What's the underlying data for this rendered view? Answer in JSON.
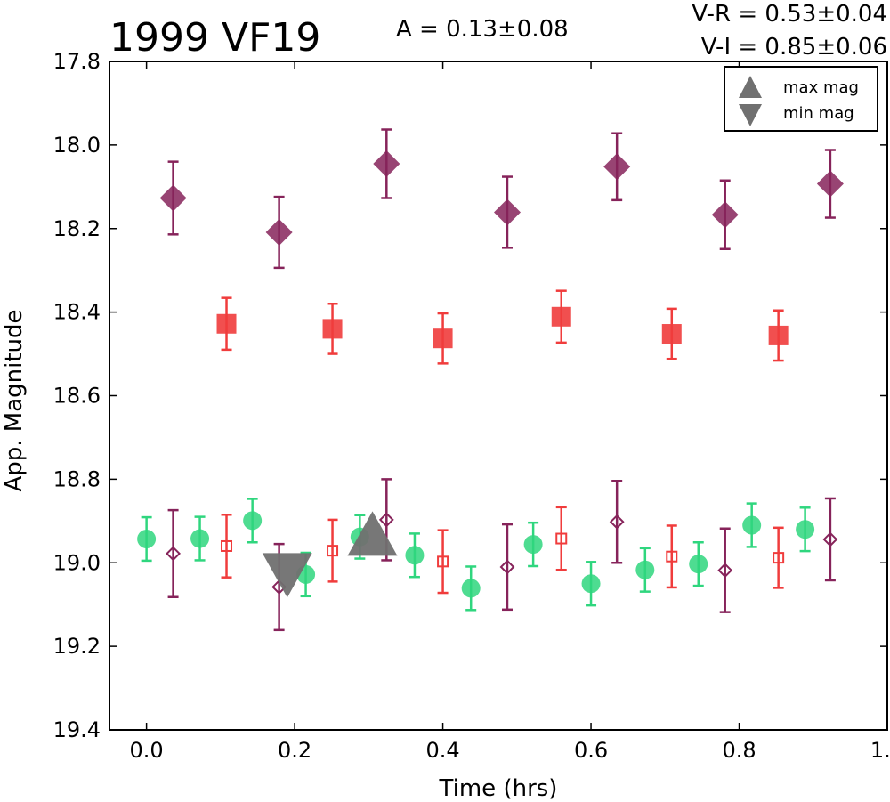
{
  "chart_data": {
    "type": "scatter",
    "title": "1999 VF19",
    "xlabel": "Time (hrs)",
    "ylabel": "App. Magnitude",
    "xlim": [
      -0.05,
      1.0
    ],
    "ylim": [
      19.4,
      17.8
    ],
    "y_inverted": true,
    "xticks": [
      "0.0",
      "0.2",
      "0.4",
      "0.6",
      "0.8",
      "1.0"
    ],
    "yticks": [
      "17.8",
      "18.0",
      "18.2",
      "18.4",
      "18.6",
      "18.8",
      "19.0",
      "19.2",
      "19.4"
    ],
    "grid": false,
    "annotations": {
      "amplitude": "A  = 0.13±0.08",
      "v_r": "V-R = 0.53±0.04",
      "v_i": "V-I  = 0.85±0.06"
    },
    "legend": {
      "placement": "top-right",
      "entries": [
        {
          "label": "max mag",
          "marker": "triangle-up",
          "color": "#707070"
        },
        {
          "label": "min mag",
          "marker": "triangle-down",
          "color": "#707070"
        }
      ]
    },
    "series": [
      {
        "marker": "diamond-filled",
        "color": "#86235a",
        "points": [
          {
            "x": 0.036,
            "y": 18.127,
            "err": 0.087
          },
          {
            "x": 0.179,
            "y": 18.209,
            "err": 0.085
          },
          {
            "x": 0.324,
            "y": 18.045,
            "err": 0.082
          },
          {
            "x": 0.487,
            "y": 18.161,
            "err": 0.085
          },
          {
            "x": 0.635,
            "y": 18.052,
            "err": 0.08
          },
          {
            "x": 0.781,
            "y": 18.167,
            "err": 0.082
          },
          {
            "x": 0.923,
            "y": 18.093,
            "err": 0.081
          }
        ]
      },
      {
        "marker": "square-filled",
        "color": "#f03c3c",
        "points": [
          {
            "x": 0.108,
            "y": 18.428,
            "err": 0.062
          },
          {
            "x": 0.251,
            "y": 18.44,
            "err": 0.06
          },
          {
            "x": 0.4,
            "y": 18.463,
            "err": 0.06
          },
          {
            "x": 0.56,
            "y": 18.411,
            "err": 0.062
          },
          {
            "x": 0.709,
            "y": 18.452,
            "err": 0.06
          },
          {
            "x": 0.853,
            "y": 18.456,
            "err": 0.06
          }
        ]
      },
      {
        "marker": "circle-filled",
        "color": "#2fd67e",
        "points": [
          {
            "x": 0.0,
            "y": 18.943,
            "err": 0.052
          },
          {
            "x": 0.072,
            "y": 18.942,
            "err": 0.052
          },
          {
            "x": 0.143,
            "y": 18.899,
            "err": 0.052
          },
          {
            "x": 0.215,
            "y": 19.028,
            "err": 0.052
          },
          {
            "x": 0.288,
            "y": 18.938,
            "err": 0.052
          },
          {
            "x": 0.362,
            "y": 18.982,
            "err": 0.052
          },
          {
            "x": 0.438,
            "y": 19.061,
            "err": 0.052
          },
          {
            "x": 0.522,
            "y": 18.956,
            "err": 0.052
          },
          {
            "x": 0.6,
            "y": 19.05,
            "err": 0.052
          },
          {
            "x": 0.673,
            "y": 19.017,
            "err": 0.052
          },
          {
            "x": 0.745,
            "y": 19.003,
            "err": 0.052
          },
          {
            "x": 0.817,
            "y": 18.91,
            "err": 0.052
          },
          {
            "x": 0.889,
            "y": 18.92,
            "err": 0.052
          }
        ]
      },
      {
        "marker": "diamond-open",
        "color": "#86235a",
        "points": [
          {
            "x": 0.036,
            "y": 18.978,
            "err": 0.104
          },
          {
            "x": 0.179,
            "y": 19.058,
            "err": 0.103
          },
          {
            "x": 0.324,
            "y": 18.897,
            "err": 0.097
          },
          {
            "x": 0.487,
            "y": 19.01,
            "err": 0.102
          },
          {
            "x": 0.635,
            "y": 18.902,
            "err": 0.098
          },
          {
            "x": 0.781,
            "y": 19.018,
            "err": 0.1
          },
          {
            "x": 0.923,
            "y": 18.944,
            "err": 0.098
          }
        ]
      },
      {
        "marker": "square-open",
        "color": "#f03c3c",
        "points": [
          {
            "x": 0.108,
            "y": 18.96,
            "err": 0.075
          },
          {
            "x": 0.251,
            "y": 18.971,
            "err": 0.074
          },
          {
            "x": 0.4,
            "y": 18.997,
            "err": 0.075
          },
          {
            "x": 0.56,
            "y": 18.942,
            "err": 0.075
          },
          {
            "x": 0.709,
            "y": 18.985,
            "err": 0.074
          },
          {
            "x": 0.853,
            "y": 18.988,
            "err": 0.072
          }
        ]
      }
    ],
    "extrema": [
      {
        "label": "min mag",
        "marker": "triangle-down",
        "color": "#707070",
        "x": 0.19,
        "y": 19.03
      },
      {
        "label": "max mag",
        "marker": "triangle-up",
        "color": "#707070",
        "x": 0.305,
        "y": 18.93
      }
    ]
  }
}
